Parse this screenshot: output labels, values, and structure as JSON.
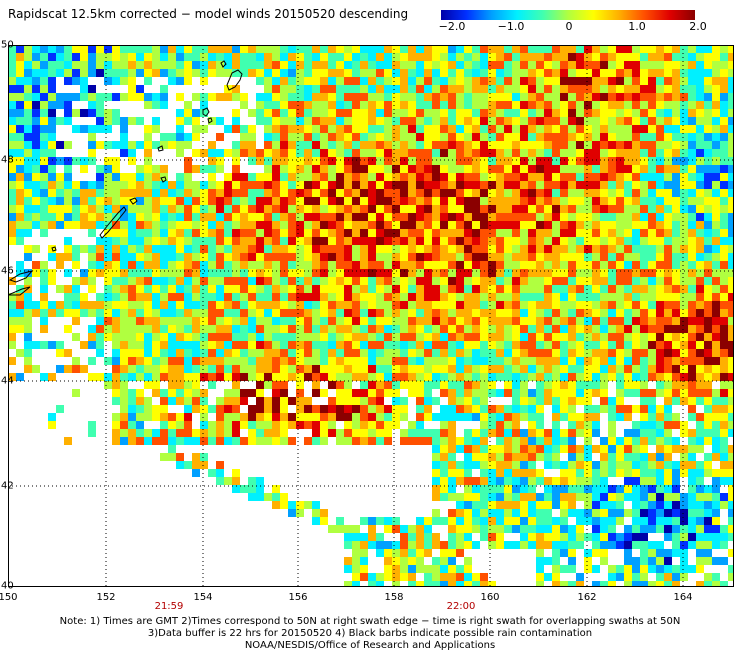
{
  "title": "Rapidscat 12.5km corrected − model winds 20150520 descending",
  "colorbar": {
    "ticks": [
      "−2.0",
      "−1.0",
      "0",
      "1.0",
      "2.0"
    ],
    "colors": [
      "#0000a8",
      "#0030ff",
      "#00a0ff",
      "#00f0ff",
      "#40ffb0",
      "#b0ff40",
      "#ffff00",
      "#ffb000",
      "#ff5000",
      "#e00000",
      "#8b0000"
    ]
  },
  "x_axis": {
    "labels": [
      "150",
      "152",
      "154",
      "156",
      "158",
      "160",
      "162",
      "164"
    ]
  },
  "y_axis": {
    "labels": [
      "50",
      "48",
      "46",
      "44",
      "42",
      "40"
    ]
  },
  "time_labels": [
    "21:59",
    "22:00"
  ],
  "notes": [
    "Note: 1) Times are GMT 2)Times correspond to 50N at right swath edge − time is right swath for overlapping swaths at 50N",
    "3)Data buffer is 22 hrs for 20150520 4) Black barbs indicate possible rain contamination",
    "NOAA/NESDIS/Office of Research and Applications"
  ],
  "colors": {
    "land_outline": "#000000",
    "grid": "#000000",
    "time_label": "#b30000"
  }
}
